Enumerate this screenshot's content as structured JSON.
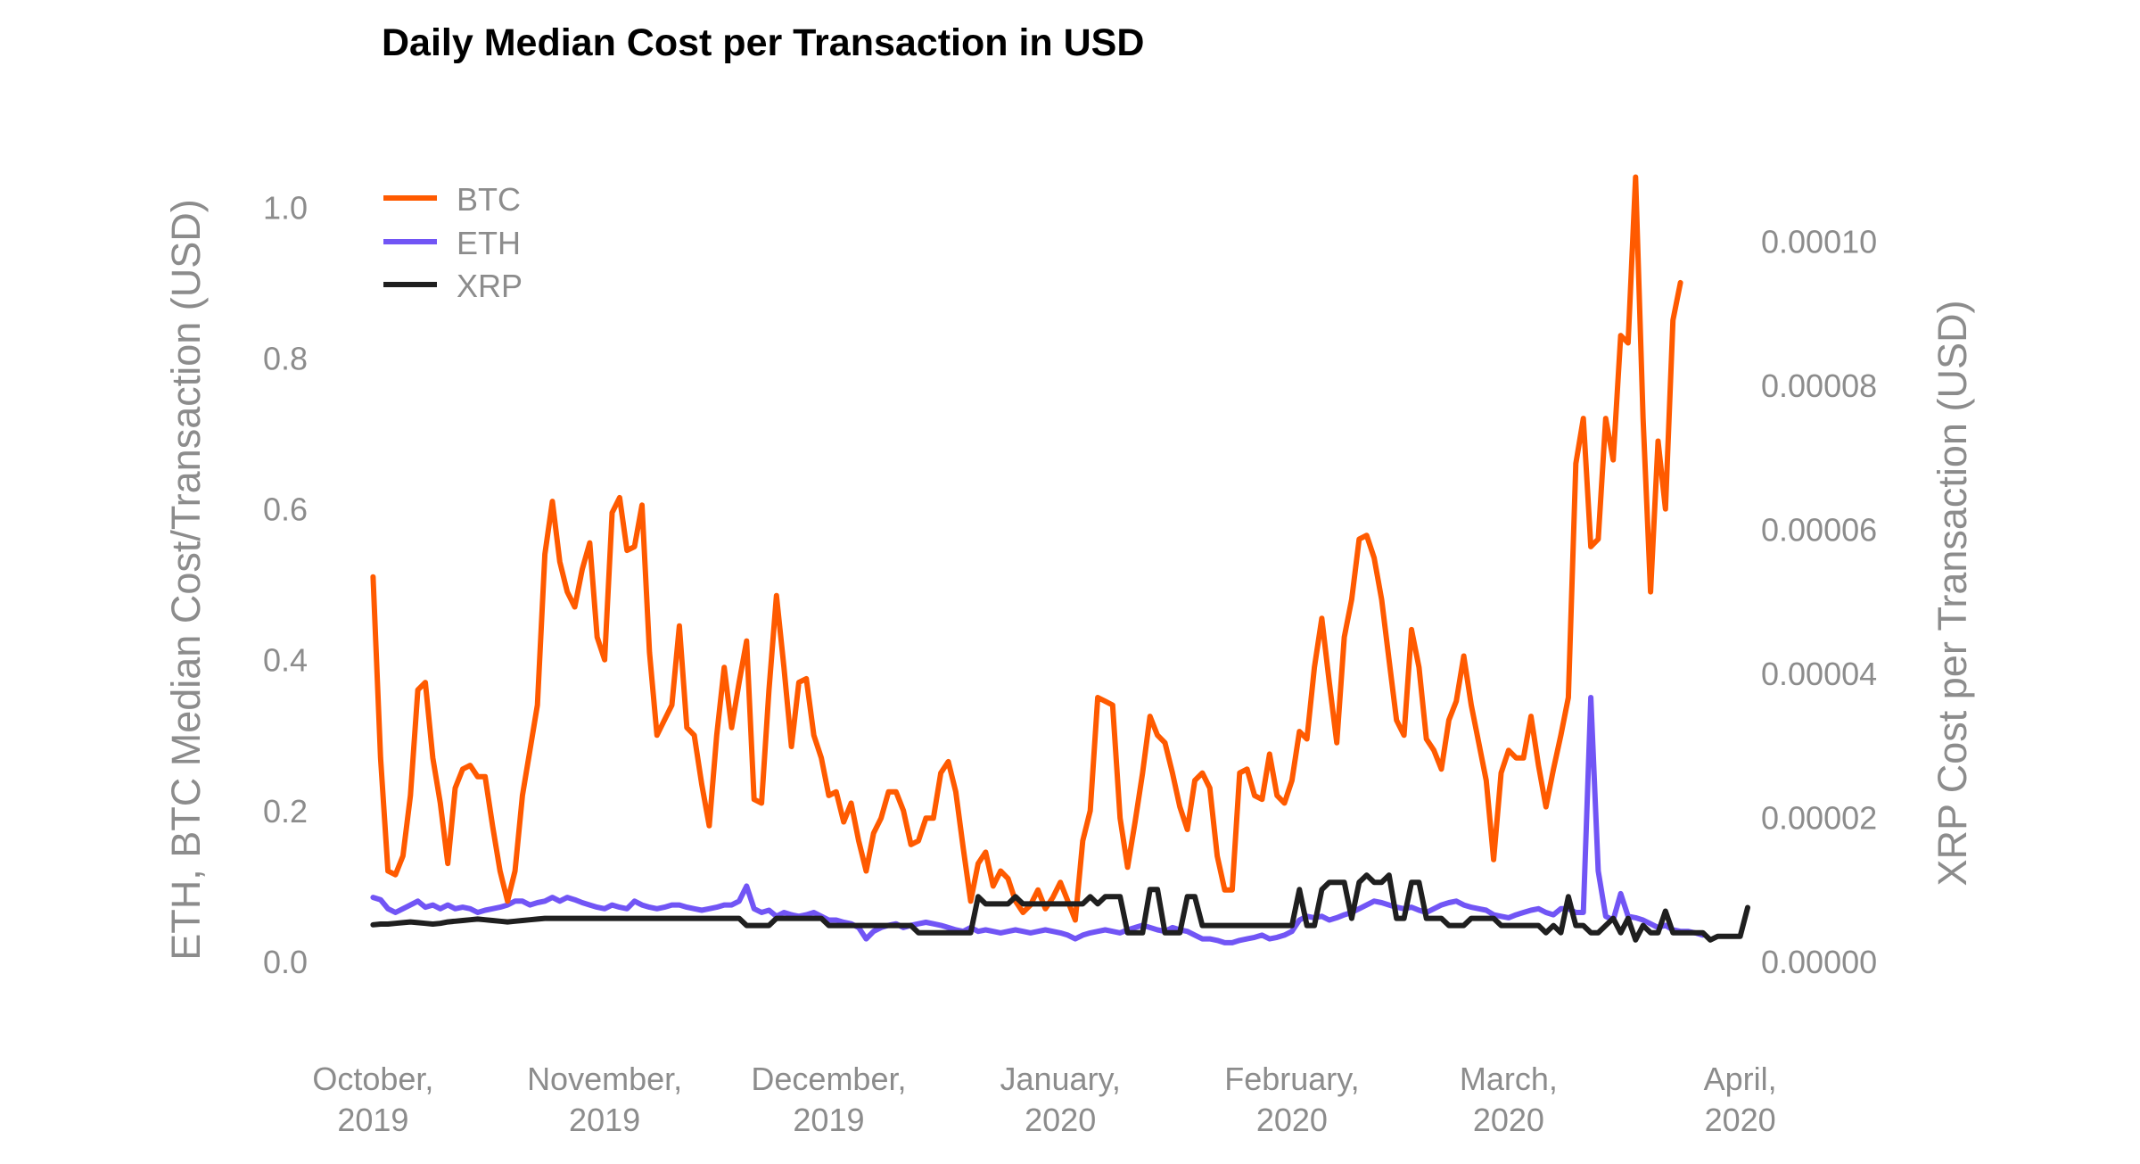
{
  "chart_data": {
    "type": "line",
    "title": "Daily Median Cost per Transaction in USD",
    "ylabel_left": "ETH, BTC Median Cost/Transaction (USD)",
    "ylabel_right": "XRP Cost per Transaction (USD)",
    "ylim_left": [
      0,
      1.05
    ],
    "ylim_right": [
      0,
      0.00011
    ],
    "yticks_left": [
      "0.0",
      "0.2",
      "0.4",
      "0.6",
      "0.8",
      "1.0"
    ],
    "yticks_left_values": [
      0,
      0.2,
      0.4,
      0.6,
      0.8,
      1.0
    ],
    "yticks_right": [
      "0.00000",
      "0.00002",
      "0.00004",
      "0.00006",
      "0.00008",
      "0.00010"
    ],
    "yticks_right_values": [
      0,
      2e-05,
      4e-05,
      6e-05,
      8e-05,
      0.0001
    ],
    "x_start": "2019-10-01",
    "x_end": "2020-03-28",
    "x_range_days": [
      -1,
      184
    ],
    "xticks": [
      {
        "line1": "October,",
        "line2": "2019",
        "day": 0
      },
      {
        "line1": "November,",
        "line2": "2019",
        "day": 31
      },
      {
        "line1": "December,",
        "line2": "2019",
        "day": 61
      },
      {
        "line1": "January,",
        "line2": "2020",
        "day": 92
      },
      {
        "line1": "February,",
        "line2": "2020",
        "day": 123
      },
      {
        "line1": "March,",
        "line2": "2020",
        "day": 152
      },
      {
        "line1": "April,",
        "line2": "2020",
        "day": 183
      }
    ],
    "series": [
      {
        "name": "BTC",
        "axis": "left",
        "color": "#ff5a00",
        "values": [
          0.51,
          0.27,
          0.12,
          0.115,
          0.14,
          0.22,
          0.36,
          0.37,
          0.27,
          0.21,
          0.13,
          0.23,
          0.255,
          0.26,
          0.245,
          0.245,
          0.18,
          0.12,
          0.08,
          0.12,
          0.22,
          0.28,
          0.34,
          0.54,
          0.61,
          0.53,
          0.49,
          0.47,
          0.52,
          0.555,
          0.43,
          0.4,
          0.595,
          0.615,
          0.545,
          0.55,
          0.605,
          0.41,
          0.3,
          0.32,
          0.34,
          0.445,
          0.31,
          0.3,
          0.235,
          0.18,
          0.3,
          0.39,
          0.31,
          0.37,
          0.425,
          0.215,
          0.21,
          0.36,
          0.485,
          0.39,
          0.285,
          0.37,
          0.375,
          0.3,
          0.27,
          0.22,
          0.225,
          0.185,
          0.21,
          0.16,
          0.12,
          0.17,
          0.19,
          0.225,
          0.225,
          0.2,
          0.155,
          0.16,
          0.19,
          0.19,
          0.25,
          0.265,
          0.225,
          0.15,
          0.08,
          0.13,
          0.145,
          0.1,
          0.12,
          0.11,
          0.08,
          0.065,
          0.075,
          0.095,
          0.07,
          0.085,
          0.105,
          0.08,
          0.055,
          0.16,
          0.2,
          0.35,
          0.345,
          0.34,
          0.19,
          0.125,
          0.185,
          0.25,
          0.325,
          0.3,
          0.29,
          0.25,
          0.205,
          0.175,
          0.24,
          0.25,
          0.23,
          0.14,
          0.095,
          0.095,
          0.25,
          0.255,
          0.22,
          0.215,
          0.275,
          0.22,
          0.21,
          0.24,
          0.305,
          0.295,
          0.39,
          0.455,
          0.37,
          0.29,
          0.43,
          0.48,
          0.56,
          0.565,
          0.535,
          0.48,
          0.4,
          0.32,
          0.3,
          0.44,
          0.39,
          0.295,
          0.28,
          0.255,
          0.32,
          0.345,
          0.405,
          0.34,
          0.29,
          0.24,
          0.135,
          0.25,
          0.28,
          0.27,
          0.27,
          0.325,
          0.26,
          0.205,
          0.255,
          0.3,
          0.35,
          0.66,
          0.72,
          0.55,
          0.56,
          0.72,
          0.665,
          0.83,
          0.82,
          1.04,
          0.72,
          0.49,
          0.69,
          0.6,
          0.85,
          0.9
        ]
      },
      {
        "name": "ETH",
        "axis": "left",
        "color": "#7155f5",
        "values": [
          0.085,
          0.082,
          0.07,
          0.065,
          0.07,
          0.075,
          0.08,
          0.072,
          0.075,
          0.07,
          0.075,
          0.07,
          0.072,
          0.07,
          0.065,
          0.068,
          0.07,
          0.072,
          0.075,
          0.08,
          0.08,
          0.075,
          0.078,
          0.08,
          0.085,
          0.08,
          0.085,
          0.082,
          0.078,
          0.075,
          0.072,
          0.07,
          0.075,
          0.072,
          0.07,
          0.08,
          0.075,
          0.072,
          0.07,
          0.072,
          0.075,
          0.075,
          0.072,
          0.07,
          0.068,
          0.07,
          0.072,
          0.075,
          0.075,
          0.08,
          0.1,
          0.07,
          0.065,
          0.068,
          0.06,
          0.065,
          0.062,
          0.06,
          0.062,
          0.065,
          0.06,
          0.055,
          0.055,
          0.052,
          0.05,
          0.045,
          0.03,
          0.04,
          0.045,
          0.048,
          0.05,
          0.045,
          0.048,
          0.05,
          0.052,
          0.05,
          0.048,
          0.045,
          0.042,
          0.04,
          0.045,
          0.04,
          0.042,
          0.04,
          0.038,
          0.04,
          0.042,
          0.04,
          0.038,
          0.04,
          0.042,
          0.04,
          0.038,
          0.035,
          0.03,
          0.035,
          0.038,
          0.04,
          0.042,
          0.04,
          0.038,
          0.042,
          0.045,
          0.048,
          0.045,
          0.042,
          0.04,
          0.045,
          0.042,
          0.04,
          0.035,
          0.03,
          0.03,
          0.028,
          0.025,
          0.025,
          0.028,
          0.03,
          0.032,
          0.035,
          0.03,
          0.032,
          0.035,
          0.04,
          0.055,
          0.06,
          0.058,
          0.06,
          0.055,
          0.058,
          0.062,
          0.065,
          0.07,
          0.075,
          0.08,
          0.078,
          0.075,
          0.072,
          0.07,
          0.072,
          0.068,
          0.065,
          0.07,
          0.075,
          0.078,
          0.08,
          0.075,
          0.072,
          0.07,
          0.068,
          0.062,
          0.06,
          0.058,
          0.062,
          0.065,
          0.068,
          0.07,
          0.065,
          0.062,
          0.07,
          0.07,
          0.065,
          0.065,
          0.35,
          0.12,
          0.06,
          0.055,
          0.09,
          0.06,
          0.058,
          0.055,
          0.05,
          0.045,
          0.048,
          0.042,
          0.04,
          0.04,
          0.038,
          0.035
        ]
      },
      {
        "name": "XRP",
        "axis": "right",
        "color": "#1f1f1f",
        "values": [
          5.1e-06,
          5.2e-06,
          5.2e-06,
          5.3e-06,
          5.4e-06,
          5.5e-06,
          5.4e-06,
          5.3e-06,
          5.2e-06,
          5.3e-06,
          5.5e-06,
          5.6e-06,
          5.7e-06,
          5.8e-06,
          5.9e-06,
          5.8e-06,
          5.7e-06,
          5.6e-06,
          5.5e-06,
          5.6e-06,
          5.7e-06,
          5.8e-06,
          5.9e-06,
          6e-06,
          6e-06,
          6e-06,
          6e-06,
          6e-06,
          6e-06,
          6e-06,
          6e-06,
          6e-06,
          6e-06,
          6e-06,
          6e-06,
          6e-06,
          6e-06,
          6e-06,
          6e-06,
          6e-06,
          6e-06,
          6e-06,
          6e-06,
          6e-06,
          6e-06,
          6e-06,
          6e-06,
          6e-06,
          6e-06,
          6e-06,
          5e-06,
          5e-06,
          5e-06,
          5e-06,
          6e-06,
          6e-06,
          6e-06,
          6e-06,
          6e-06,
          6e-06,
          6e-06,
          5e-06,
          5e-06,
          5e-06,
          5e-06,
          5e-06,
          5e-06,
          5e-06,
          5e-06,
          5e-06,
          5e-06,
          5e-06,
          5e-06,
          4e-06,
          4e-06,
          4e-06,
          4e-06,
          4e-06,
          4e-06,
          4e-06,
          4e-06,
          9e-06,
          8e-06,
          8e-06,
          8e-06,
          8e-06,
          9e-06,
          8e-06,
          8e-06,
          8e-06,
          8e-06,
          8e-06,
          8e-06,
          8e-06,
          8e-06,
          8e-06,
          9e-06,
          8e-06,
          9e-06,
          9e-06,
          9e-06,
          4e-06,
          4e-06,
          4e-06,
          1e-05,
          1e-05,
          4e-06,
          4e-06,
          4e-06,
          9e-06,
          9e-06,
          5e-06,
          5e-06,
          5e-06,
          5e-06,
          5e-06,
          5e-06,
          5e-06,
          5e-06,
          5e-06,
          5e-06,
          5e-06,
          5e-06,
          5e-06,
          1e-05,
          5e-06,
          5e-06,
          1e-05,
          1.1e-05,
          1.1e-05,
          1.1e-05,
          6e-06,
          1.1e-05,
          1.2e-05,
          1.1e-05,
          1.1e-05,
          1.2e-05,
          6e-06,
          6e-06,
          1.1e-05,
          1.1e-05,
          6e-06,
          6e-06,
          6e-06,
          5e-06,
          5e-06,
          5e-06,
          6e-06,
          6e-06,
          6e-06,
          6e-06,
          5e-06,
          5e-06,
          5e-06,
          5e-06,
          5e-06,
          5e-06,
          4e-06,
          5e-06,
          4e-06,
          9e-06,
          5e-06,
          5e-06,
          4e-06,
          4e-06,
          5e-06,
          6e-06,
          4e-06,
          6e-06,
          3e-06,
          5e-06,
          4e-06,
          4e-06,
          7e-06,
          4e-06,
          4e-06,
          4e-06,
          4e-06,
          4e-06,
          3e-06,
          3.5e-06,
          3.5e-06,
          3.5e-06,
          3.5e-06,
          7.5e-06
        ]
      }
    ],
    "legend": {
      "position": "top-left",
      "entries": [
        "BTC",
        "ETH",
        "XRP"
      ]
    }
  }
}
